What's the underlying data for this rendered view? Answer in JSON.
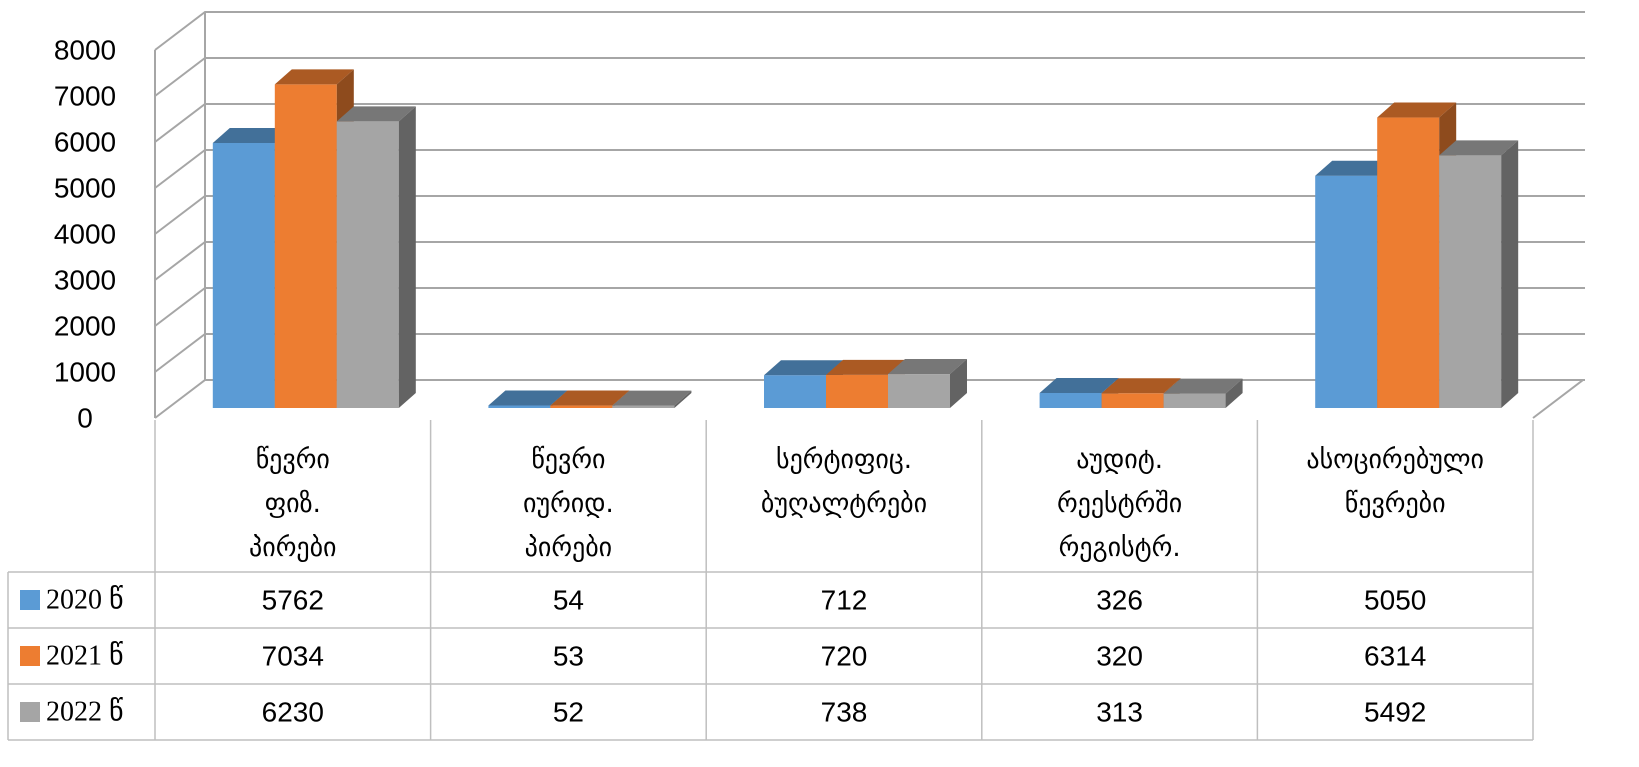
{
  "chart_data": {
    "type": "bar3d",
    "categories": [
      "წევრი ფიზ. პირები",
      "წევრი იურიდ. პირები",
      "სერტიფიც. ბუღალტრები",
      "აუდიტ. რეესტრში რეგისტრ.",
      "ასოცირებული წევრები"
    ],
    "series": [
      {
        "name": "2020 წ",
        "color": "#5b9bd5",
        "values": [
          5762,
          54,
          712,
          326,
          5050
        ]
      },
      {
        "name": "2021 წ",
        "color": "#ed7d31",
        "values": [
          7034,
          53,
          720,
          320,
          6314
        ]
      },
      {
        "name": "2022 წ",
        "color": "#a5a5a5",
        "values": [
          6230,
          52,
          738,
          313,
          5492
        ]
      }
    ],
    "ylim": [
      0,
      8000
    ],
    "yticks": [
      0,
      1000,
      2000,
      3000,
      4000,
      5000,
      6000,
      7000,
      8000
    ],
    "grid": true,
    "data_table": true
  }
}
